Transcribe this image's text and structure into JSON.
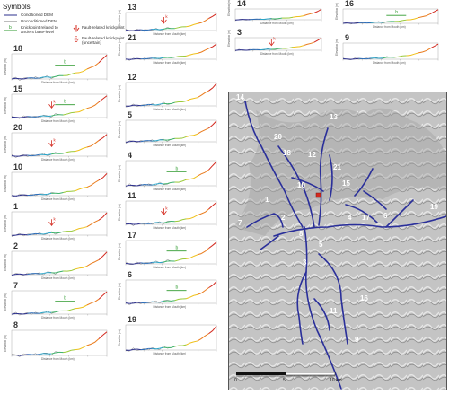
{
  "legend": {
    "title": "Symbols",
    "conditioned": "Conditioned DEM",
    "unconditioned": "Unconditioned DEM",
    "knick_base": "Knickpoint related to ancient base-level",
    "fault_knick": "Fault-related knickpoint",
    "fault_knick_unc": "Fault-related knickpoint (uncertain)"
  },
  "axes": {
    "x_label": "Distance from Mouth (km)",
    "y_label": "Elevation (m)"
  },
  "profiles": [
    {
      "id": "18",
      "b": true,
      "k": false
    },
    {
      "id": "15",
      "b": true,
      "k": true
    },
    {
      "id": "20",
      "b": false,
      "k": true
    },
    {
      "id": "10",
      "b": false,
      "k": false
    },
    {
      "id": "1",
      "b": false,
      "k": true
    },
    {
      "id": "2",
      "b": false,
      "k": false
    },
    {
      "id": "7",
      "b": true,
      "k": false
    },
    {
      "id": "8",
      "b": false,
      "k": false
    },
    {
      "id": "13",
      "b": false,
      "k": true
    },
    {
      "id": "21",
      "b": false,
      "k": false
    },
    {
      "id": "12",
      "b": false,
      "k": false
    },
    {
      "id": "5",
      "b": false,
      "k": false
    },
    {
      "id": "4",
      "b": true,
      "k": false
    },
    {
      "id": "11",
      "b": false,
      "k": true
    },
    {
      "id": "17",
      "b": true,
      "k": false
    },
    {
      "id": "6",
      "b": true,
      "k": false
    },
    {
      "id": "19",
      "b": false,
      "k": false
    },
    {
      "id": "14",
      "b": false,
      "k": false
    },
    {
      "id": "3",
      "b": false,
      "k": true
    },
    {
      "id": "16",
      "b": true,
      "k": false
    },
    {
      "id": "9",
      "b": false,
      "k": false
    }
  ],
  "map": {
    "labels": [
      "14",
      "20",
      "13",
      "12",
      "18",
      "21",
      "15",
      "10",
      "1",
      "2",
      "4",
      "17",
      "6",
      "19",
      "7",
      "8",
      "5",
      "3",
      "11",
      "16",
      "9"
    ],
    "scale": [
      "0",
      "5",
      "10 km"
    ]
  },
  "colors": {
    "river": "#2a2f9a",
    "conditioned": "#2b2f8e",
    "unconditioned": "#7a7a7a",
    "knick_base": "#2e9a2e",
    "fault": "#d4291e"
  }
}
